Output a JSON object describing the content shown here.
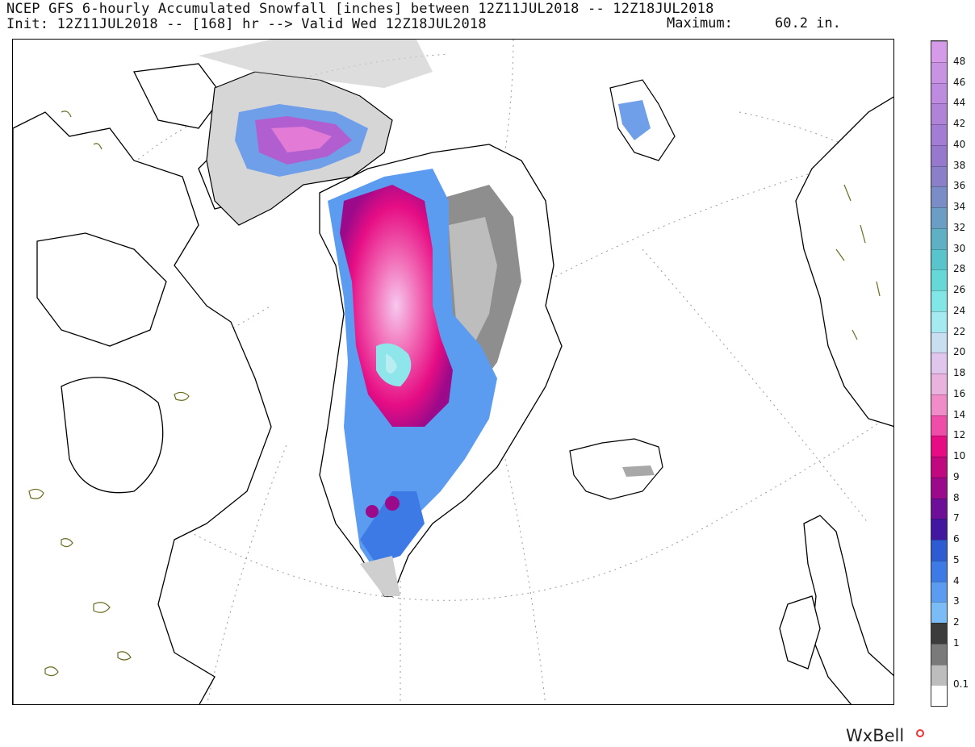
{
  "header": {
    "title": "NCEP GFS 6-hourly Accumulated Snowfall [inches] between 12Z11JUL2018 -- 12Z18JUL2018",
    "subtitle": "Init: 12Z11JUL2018 -- [168] hr --> Valid Wed 12Z18JUL2018",
    "maximum_label": "Maximum:",
    "maximum_value": "60.2 in."
  },
  "map": {
    "region": "Greenland, Canadian Arctic, Iceland, N Europe",
    "land_color": "#ffffff",
    "coast_color": "#000000",
    "gridline_color": "#999999",
    "lake_outline_color": "#6b6b1e"
  },
  "colorbar": {
    "ticks": [
      "48",
      "46",
      "44",
      "42",
      "40",
      "38",
      "36",
      "34",
      "32",
      "30",
      "28",
      "26",
      "24",
      "22",
      "20",
      "18",
      "16",
      "14",
      "12",
      "10",
      "9",
      "8",
      "7",
      "6",
      "5",
      "4",
      "3",
      "2",
      "1",
      "0.1"
    ],
    "colors": [
      "#d59be8",
      "#c993e4",
      "#bd8bdf",
      "#b083d9",
      "#a37dd3",
      "#9679cc",
      "#8a7fc8",
      "#7b8dc6",
      "#6c9dc4",
      "#5fb0c4",
      "#5ac4cc",
      "#66d8d8",
      "#82e6e6",
      "#a5eaf0",
      "#c8dff2",
      "#e0c6ec",
      "#eab2de",
      "#f08cc8",
      "#ee4ea8",
      "#e60d84",
      "#c0097e",
      "#9a0a8a",
      "#6e0f98",
      "#4218a0",
      "#2e5ad2",
      "#3e7ae6",
      "#5b9bf0",
      "#7bbcf6",
      "#3c3c3c",
      "#7a7a7a",
      "#bdbdbd",
      "#ffffff"
    ],
    "units": "in"
  },
  "brand": {
    "name": "WxBell"
  }
}
